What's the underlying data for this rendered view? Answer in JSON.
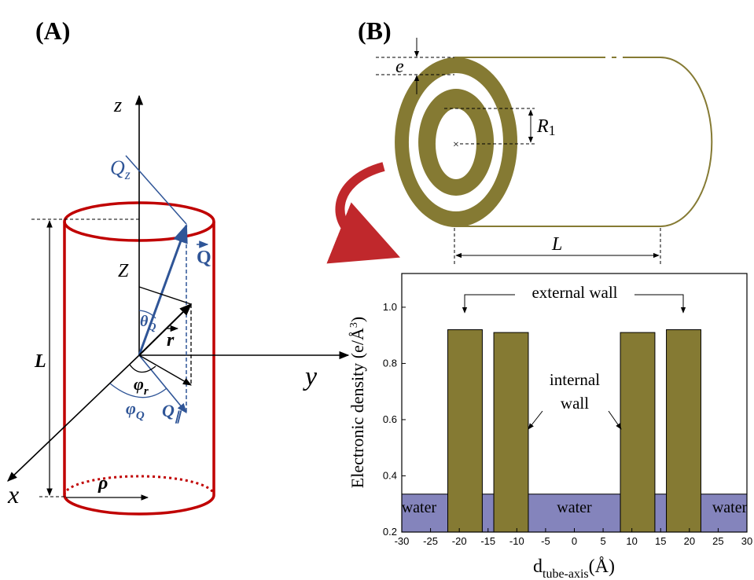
{
  "panel_a": {
    "label": "(A)",
    "z_axis": "z",
    "y_axis": "y",
    "x_axis": "x",
    "length": "L",
    "radius": "ρ",
    "qz": "Q",
    "qz_sub": "z",
    "big_z": "Z",
    "theta": "θ",
    "theta_sub": "Q",
    "q": "Q",
    "r": "r",
    "phi_r": "φ",
    "phi_r_sub": "r",
    "phi_q": "φ",
    "phi_q_sub": "Q",
    "q_par": "Q",
    "q_par_sub": "∥"
  },
  "panel_b": {
    "label": "(B)",
    "thickness": "e",
    "radius": "R",
    "radius_sub": "1",
    "length": "L"
  },
  "chart_data": {
    "type": "histogram",
    "xlabel": "d",
    "xlabel_sub": "tube-axis",
    "xlabel_end": "(Å)",
    "ylabel": "Electronic density (e/Å",
    "ylabel_sup": "3",
    "ylabel_end": ")",
    "bins": [
      -30,
      -22,
      -16,
      -14,
      -8,
      8,
      14,
      16,
      22,
      30
    ],
    "values": [
      0.335,
      0.92,
      0.335,
      0.91,
      0.335,
      0.91,
      0.335,
      0.92,
      0.335
    ],
    "colors": [
      "#8484bc",
      "#857a33",
      "#8484bc",
      "#857a33",
      "#8484bc",
      "#857a33",
      "#8484bc",
      "#857a33",
      "#8484bc"
    ],
    "xlim": [
      -30,
      30
    ],
    "xticks": [
      -30,
      -25,
      -20,
      -15,
      -10,
      -5,
      0,
      5,
      10,
      15,
      20,
      25,
      30
    ],
    "ylim": [
      0.2,
      1.12
    ],
    "yticks": [
      0.2,
      0.4,
      0.6,
      0.8,
      {
        "value": 1,
        "label": "1.0"
      }
    ],
    "annotations": {
      "external": "external wall",
      "internal_1": "internal",
      "internal_2": "wall",
      "water": [
        "water",
        "water",
        "water"
      ]
    }
  }
}
